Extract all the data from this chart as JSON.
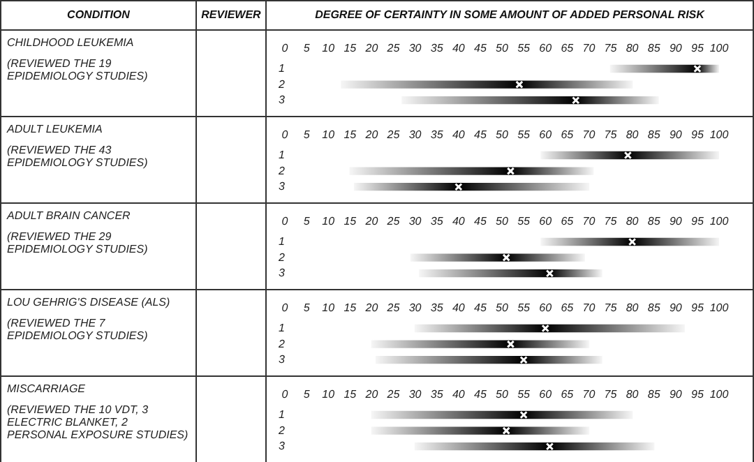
{
  "chart_data": [
    {
      "type": "bar",
      "orientation": "horizontal",
      "xlabel": "DEGREE OF CERTAINTY IN SOME AMOUNT OF ADDED PERSONAL RISK",
      "ylabel": "REVIEWER",
      "annotations": [
        "CONDITION",
        "CHILDHOOD LEUKEMIA",
        "(REVIEWED THE 19 EPIDEMIOLOGY STUDIES)"
      ],
      "categories": [
        "1",
        "2",
        "3"
      ],
      "xlim": [
        0,
        100
      ],
      "xticks": [
        0,
        5,
        10,
        15,
        20,
        25,
        30,
        35,
        40,
        45,
        50,
        55,
        60,
        65,
        70,
        75,
        80,
        85,
        90,
        95,
        100
      ],
      "series": [
        {
          "color": "#000000",
          "base": [
            75,
            13,
            27
          ],
          "values": [
            25,
            67,
            59
          ]
        },
        {
          "type": "scatter",
          "color": "#ffffff",
          "marker": "cross",
          "values": [
            95,
            54,
            67
          ]
        }
      ]
    },
    {
      "type": "bar",
      "orientation": "horizontal",
      "annotations": [
        "ADULT LEUKEMIA",
        "(REVIEWED THE 43 EPIDEMIOLOGY STUDIES)"
      ],
      "categories": [
        "1",
        "2",
        "3"
      ],
      "xlim": [
        0,
        100
      ],
      "xticks": [
        0,
        5,
        10,
        15,
        20,
        25,
        30,
        35,
        40,
        45,
        50,
        55,
        60,
        65,
        70,
        75,
        80,
        85,
        90,
        95,
        100
      ],
      "series": [
        {
          "color": "#000000",
          "base": [
            59,
            15,
            16
          ],
          "values": [
            41,
            56,
            54
          ]
        },
        {
          "type": "scatter",
          "color": "#ffffff",
          "marker": "cross",
          "values": [
            79,
            52,
            40
          ]
        }
      ]
    },
    {
      "type": "bar",
      "orientation": "horizontal",
      "annotations": [
        "ADULT BRAIN CANCER",
        "(REVIEWED THE 29 EPIDEMIOLOGY STUDIES)"
      ],
      "categories": [
        "1",
        "2",
        "3"
      ],
      "xlim": [
        0,
        100
      ],
      "xticks": [
        0,
        5,
        10,
        15,
        20,
        25,
        30,
        35,
        40,
        45,
        50,
        55,
        60,
        65,
        70,
        75,
        80,
        85,
        90,
        95,
        100
      ],
      "series": [
        {
          "color": "#000000",
          "base": [
            59,
            29,
            31
          ],
          "values": [
            41,
            40,
            42
          ]
        },
        {
          "type": "scatter",
          "color": "#ffffff",
          "marker": "cross",
          "values": [
            80,
            51,
            61
          ]
        }
      ]
    },
    {
      "type": "bar",
      "orientation": "horizontal",
      "annotations": [
        "LOU GEHRIG'S DISEASE (ALS)",
        "(REVIEWED THE 7 EPIDEMIOLOGY STUDIES)"
      ],
      "categories": [
        "1",
        "2",
        "3"
      ],
      "xlim": [
        0,
        100
      ],
      "xticks": [
        0,
        5,
        10,
        15,
        20,
        25,
        30,
        35,
        40,
        45,
        50,
        55,
        60,
        65,
        70,
        75,
        80,
        85,
        90,
        95,
        100
      ],
      "series": [
        {
          "color": "#000000",
          "base": [
            30,
            20,
            21
          ],
          "values": [
            62,
            50,
            52
          ]
        },
        {
          "type": "scatter",
          "color": "#ffffff",
          "marker": "cross",
          "values": [
            60,
            52,
            55
          ]
        }
      ]
    },
    {
      "type": "bar",
      "orientation": "horizontal",
      "annotations": [
        "MISCARRIAGE",
        "(REVIEWED THE 10 VDT, 3 ELECTRIC BLANKET, 2 PERSONAL EXPOSURE STUDIES)"
      ],
      "categories": [
        "1",
        "2",
        "3"
      ],
      "xlim": [
        0,
        100
      ],
      "xticks": [
        0,
        5,
        10,
        15,
        20,
        25,
        30,
        35,
        40,
        45,
        50,
        55,
        60,
        65,
        70,
        75,
        80,
        85,
        90,
        95,
        100
      ],
      "series": [
        {
          "color": "#000000",
          "base": [
            20,
            20,
            30
          ],
          "values": [
            60,
            50,
            55
          ]
        },
        {
          "type": "scatter",
          "color": "#ffffff",
          "marker": "cross",
          "values": [
            55,
            51,
            61
          ]
        }
      ]
    }
  ]
}
